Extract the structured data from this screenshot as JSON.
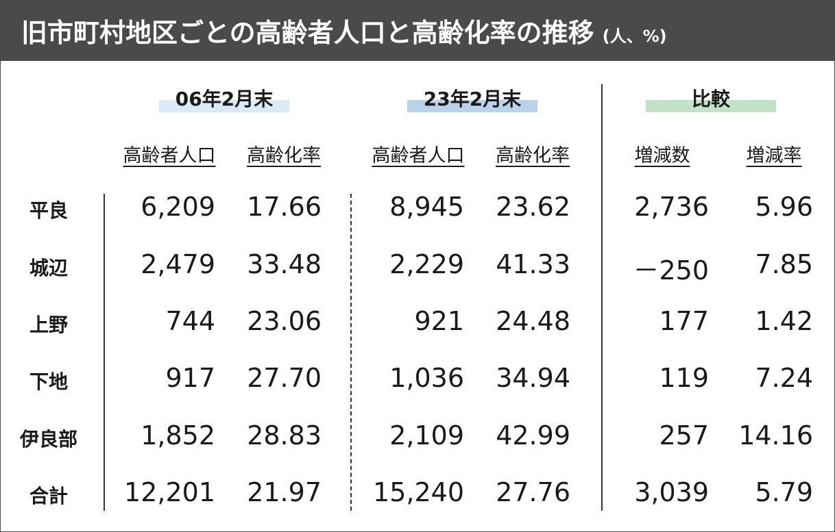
{
  "header": {
    "title": "旧市町村地区ごとの高齢者人口と高齢化率の推移",
    "unit": "(人、%)"
  },
  "table": {
    "groups": [
      "06年2月末",
      "23年2月末",
      "比較"
    ],
    "columns": [
      "高齢者人口",
      "高齢化率",
      "高齢者人口",
      "高齢化率",
      "増減数",
      "増減率"
    ],
    "rows": [
      [
        "平良",
        "6,209",
        "17.66",
        "8,945",
        "23.62",
        "2,736",
        "5.96"
      ],
      [
        "城辺",
        "2,479",
        "33.48",
        "2,229",
        "41.33",
        "－250",
        "7.85"
      ],
      [
        "上野",
        "744",
        "23.06",
        "921",
        "24.48",
        "177",
        "1.42"
      ],
      [
        "下地",
        "917",
        "27.70",
        "1,036",
        "34.94",
        "119",
        "7.24"
      ],
      [
        "伊良部",
        "1,852",
        "28.83",
        "2,109",
        "42.99",
        "257",
        "14.16"
      ],
      [
        "合計",
        "12,201",
        "21.97",
        "15,240",
        "27.76",
        "3,039",
        "5.79"
      ]
    ]
  }
}
